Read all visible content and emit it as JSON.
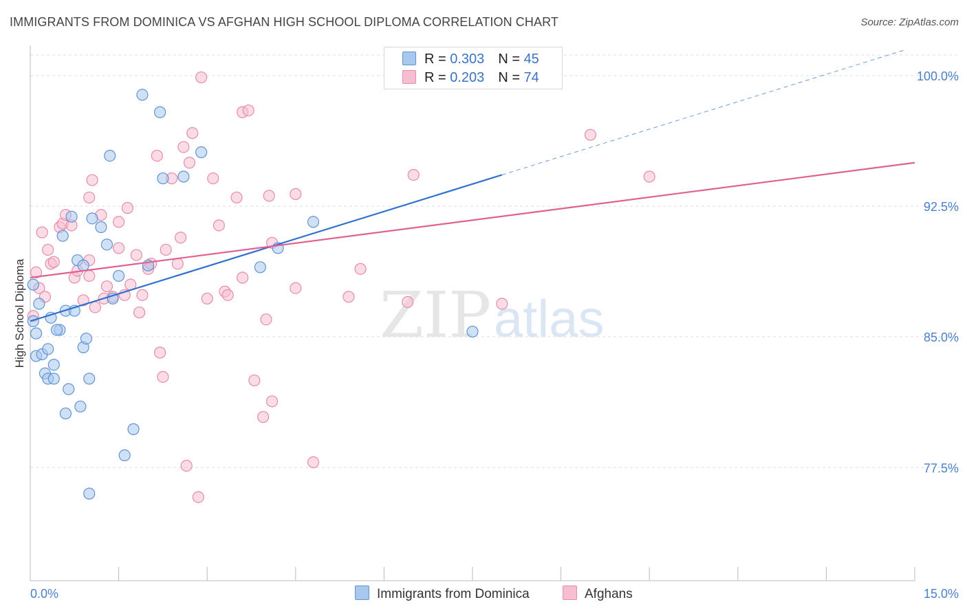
{
  "title": "IMMIGRANTS FROM DOMINICA VS AFGHAN HIGH SCHOOL DIPLOMA CORRELATION CHART",
  "source": "Source: ZipAtlas.com",
  "watermark": {
    "zip": "ZIP",
    "atlas": "atlas"
  },
  "colors": {
    "blue_fill": "#a9c8ee",
    "blue_stroke": "#5f93d6",
    "blue_line": "#2f6fcf",
    "pink_fill": "#f6bfd1",
    "pink_stroke": "#e88aa9",
    "pink_line": "#e06090",
    "grid": "#dddddd",
    "tick_text": "#4a7fc9"
  },
  "legend": {
    "rows": [
      {
        "r_label": "R = ",
        "r_value": "0.303",
        "n_label": "N = ",
        "n_value": "45"
      },
      {
        "r_label": "R = ",
        "r_value": "0.203",
        "n_label": "N = ",
        "n_value": "74"
      }
    ]
  },
  "bottom_legend": [
    "Immigrants from Dominica",
    "Afghans"
  ],
  "chart_data": {
    "type": "scatter",
    "title": "IMMIGRANTS FROM DOMINICA VS AFGHAN HIGH SCHOOL DIPLOMA CORRELATION CHART",
    "xlabel": "",
    "ylabel": "High School Diploma",
    "xlim": [
      0,
      15
    ],
    "ylim": [
      71.0,
      101.5
    ],
    "x_tick_labels": [
      "0.0%",
      "15.0%"
    ],
    "y_ticks": [
      77.5,
      85.0,
      92.5,
      100.0
    ],
    "y_tick_labels": [
      "77.5%",
      "85.0%",
      "92.5%",
      "100.0%"
    ],
    "grid": true,
    "legend_position": "top-center",
    "series": [
      {
        "name": "Immigrants from Dominica",
        "r": 0.303,
        "n": 45,
        "trend": {
          "x0": 0.0,
          "y0": 85.9,
          "x1": 8.0,
          "y1": 94.3,
          "dashed_to_x": 15.0
        },
        "points": [
          [
            0.05,
            88.0
          ],
          [
            0.05,
            85.9
          ],
          [
            0.1,
            85.2
          ],
          [
            0.1,
            83.9
          ],
          [
            0.15,
            86.9
          ],
          [
            0.2,
            84.0
          ],
          [
            0.25,
            82.9
          ],
          [
            0.3,
            82.6
          ],
          [
            0.3,
            84.3
          ],
          [
            0.35,
            86.1
          ],
          [
            0.4,
            83.4
          ],
          [
            0.4,
            82.6
          ],
          [
            0.5,
            85.4
          ],
          [
            0.55,
            90.8
          ],
          [
            0.6,
            86.5
          ],
          [
            0.6,
            80.6
          ],
          [
            0.65,
            82.0
          ],
          [
            0.7,
            91.9
          ],
          [
            0.75,
            86.5
          ],
          [
            0.8,
            89.4
          ],
          [
            0.85,
            81.0
          ],
          [
            0.9,
            84.4
          ],
          [
            0.9,
            89.1
          ],
          [
            0.95,
            84.9
          ],
          [
            1.0,
            82.6
          ],
          [
            1.0,
            76.0
          ],
          [
            1.05,
            91.8
          ],
          [
            1.2,
            91.3
          ],
          [
            1.3,
            90.3
          ],
          [
            1.35,
            95.4
          ],
          [
            1.4,
            87.2
          ],
          [
            1.5,
            88.5
          ],
          [
            1.6,
            78.2
          ],
          [
            1.75,
            79.7
          ],
          [
            1.9,
            98.9
          ],
          [
            2.0,
            89.1
          ],
          [
            2.2,
            97.9
          ],
          [
            2.25,
            94.1
          ],
          [
            2.6,
            94.2
          ],
          [
            2.9,
            95.6
          ],
          [
            3.9,
            89.0
          ],
          [
            4.2,
            90.1
          ],
          [
            4.8,
            91.6
          ],
          [
            7.5,
            85.3
          ],
          [
            0.45,
            85.4
          ]
        ]
      },
      {
        "name": "Afghans",
        "r": 0.203,
        "n": 74,
        "trend": {
          "x0": 0.0,
          "y0": 88.4,
          "x1": 15.0,
          "y1": 95.0
        },
        "points": [
          [
            0.05,
            86.2
          ],
          [
            0.1,
            88.7
          ],
          [
            0.15,
            87.8
          ],
          [
            0.2,
            91.0
          ],
          [
            0.3,
            90.0
          ],
          [
            0.35,
            89.2
          ],
          [
            0.4,
            89.3
          ],
          [
            0.5,
            91.3
          ],
          [
            0.55,
            91.5
          ],
          [
            0.6,
            92.0
          ],
          [
            0.7,
            91.4
          ],
          [
            0.75,
            88.4
          ],
          [
            0.8,
            88.8
          ],
          [
            0.9,
            87.1
          ],
          [
            1.0,
            89.4
          ],
          [
            1.0,
            93.0
          ],
          [
            1.05,
            94.0
          ],
          [
            1.1,
            86.7
          ],
          [
            1.2,
            92.0
          ],
          [
            1.25,
            87.2
          ],
          [
            1.3,
            87.9
          ],
          [
            1.4,
            87.3
          ],
          [
            1.5,
            90.1
          ],
          [
            1.5,
            91.6
          ],
          [
            1.6,
            87.4
          ],
          [
            1.65,
            92.4
          ],
          [
            1.7,
            88.0
          ],
          [
            1.8,
            89.7
          ],
          [
            1.85,
            86.4
          ],
          [
            1.9,
            87.4
          ],
          [
            2.0,
            88.9
          ],
          [
            2.05,
            89.2
          ],
          [
            2.15,
            95.4
          ],
          [
            2.2,
            84.1
          ],
          [
            2.25,
            82.7
          ],
          [
            2.3,
            90.0
          ],
          [
            2.4,
            94.1
          ],
          [
            2.5,
            89.2
          ],
          [
            2.55,
            90.7
          ],
          [
            2.6,
            95.9
          ],
          [
            2.65,
            77.6
          ],
          [
            2.7,
            95.0
          ],
          [
            2.75,
            96.7
          ],
          [
            2.85,
            75.8
          ],
          [
            2.9,
            99.9
          ],
          [
            3.0,
            87.2
          ],
          [
            3.1,
            94.1
          ],
          [
            3.2,
            91.4
          ],
          [
            3.3,
            87.6
          ],
          [
            3.35,
            87.4
          ],
          [
            3.5,
            93.0
          ],
          [
            3.6,
            88.4
          ],
          [
            3.6,
            97.9
          ],
          [
            3.7,
            98.0
          ],
          [
            3.8,
            82.5
          ],
          [
            3.95,
            80.4
          ],
          [
            4.0,
            86.0
          ],
          [
            4.05,
            93.1
          ],
          [
            4.1,
            81.3
          ],
          [
            4.1,
            90.4
          ],
          [
            4.5,
            87.8
          ],
          [
            4.5,
            93.2
          ],
          [
            4.8,
            77.8
          ],
          [
            5.4,
            87.3
          ],
          [
            5.6,
            88.9
          ],
          [
            6.4,
            87.0
          ],
          [
            6.5,
            94.3
          ],
          [
            6.8,
            99.9
          ],
          [
            8.0,
            86.9
          ],
          [
            8.5,
            99.9
          ],
          [
            9.5,
            96.6
          ],
          [
            10.5,
            94.2
          ],
          [
            0.25,
            87.3
          ],
          [
            1.0,
            88.5
          ]
        ]
      }
    ]
  }
}
